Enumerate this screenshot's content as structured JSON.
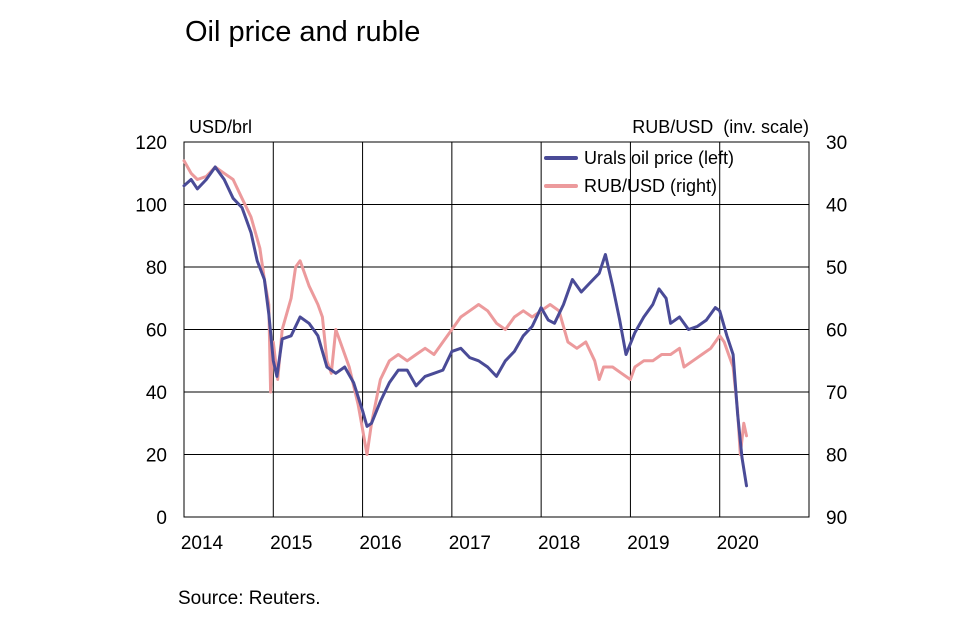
{
  "title": "Oil price and ruble",
  "source": "Source: Reuters.",
  "chart_data": {
    "type": "line",
    "x_ticks": [
      "2014",
      "2015",
      "2016",
      "2017",
      "2018",
      "2019",
      "2020"
    ],
    "xlim": [
      2014,
      2021
    ],
    "left_axis": {
      "unit": "USD/brl",
      "ticks": [
        "120",
        "100",
        "80",
        "60",
        "40",
        "20",
        "0"
      ],
      "range": [
        0,
        120
      ]
    },
    "right_axis": {
      "unit": "RUB/USD  (inv. scale)",
      "ticks": [
        "30",
        "40",
        "50",
        "60",
        "70",
        "80",
        "90"
      ],
      "range": [
        30,
        90
      ],
      "inverted": true
    },
    "grid": "vertical-and-horizontal",
    "legend": "top-right",
    "series": [
      {
        "name": "Urals oil price (left)",
        "axis": "left",
        "color": "#4a4b97",
        "points": [
          [
            2014.0,
            106
          ],
          [
            2014.08,
            108
          ],
          [
            2014.15,
            105
          ],
          [
            2014.25,
            108
          ],
          [
            2014.35,
            112
          ],
          [
            2014.45,
            108
          ],
          [
            2014.55,
            102
          ],
          [
            2014.65,
            99
          ],
          [
            2014.75,
            91
          ],
          [
            2014.82,
            82
          ],
          [
            2014.9,
            76
          ],
          [
            2014.95,
            65
          ],
          [
            2015.0,
            50
          ],
          [
            2015.04,
            45
          ],
          [
            2015.1,
            57
          ],
          [
            2015.2,
            58
          ],
          [
            2015.3,
            64
          ],
          [
            2015.4,
            62
          ],
          [
            2015.5,
            58
          ],
          [
            2015.6,
            48
          ],
          [
            2015.7,
            46
          ],
          [
            2015.8,
            48
          ],
          [
            2015.9,
            43
          ],
          [
            2016.0,
            34
          ],
          [
            2016.05,
            29
          ],
          [
            2016.1,
            30
          ],
          [
            2016.2,
            37
          ],
          [
            2016.3,
            43
          ],
          [
            2016.4,
            47
          ],
          [
            2016.5,
            47
          ],
          [
            2016.6,
            42
          ],
          [
            2016.7,
            45
          ],
          [
            2016.8,
            46
          ],
          [
            2016.9,
            47
          ],
          [
            2017.0,
            53
          ],
          [
            2017.1,
            54
          ],
          [
            2017.2,
            51
          ],
          [
            2017.3,
            50
          ],
          [
            2017.4,
            48
          ],
          [
            2017.5,
            45
          ],
          [
            2017.6,
            50
          ],
          [
            2017.7,
            53
          ],
          [
            2017.8,
            58
          ],
          [
            2017.9,
            61
          ],
          [
            2018.0,
            67
          ],
          [
            2018.08,
            63
          ],
          [
            2018.15,
            62
          ],
          [
            2018.25,
            68
          ],
          [
            2018.35,
            76
          ],
          [
            2018.45,
            72
          ],
          [
            2018.55,
            75
          ],
          [
            2018.65,
            78
          ],
          [
            2018.72,
            84
          ],
          [
            2018.8,
            74
          ],
          [
            2018.88,
            63
          ],
          [
            2018.95,
            52
          ],
          [
            2019.05,
            59
          ],
          [
            2019.15,
            64
          ],
          [
            2019.25,
            68
          ],
          [
            2019.32,
            73
          ],
          [
            2019.4,
            70
          ],
          [
            2019.45,
            62
          ],
          [
            2019.55,
            64
          ],
          [
            2019.65,
            60
          ],
          [
            2019.75,
            61
          ],
          [
            2019.85,
            63
          ],
          [
            2019.95,
            67
          ],
          [
            2020.0,
            66
          ],
          [
            2020.08,
            58
          ],
          [
            2020.15,
            52
          ],
          [
            2020.2,
            33
          ],
          [
            2020.25,
            19
          ],
          [
            2020.3,
            10
          ]
        ]
      },
      {
        "name": "RUB/USD (right)",
        "axis": "right",
        "color": "#ec9a9c",
        "points": [
          [
            2014.0,
            33
          ],
          [
            2014.08,
            35
          ],
          [
            2014.15,
            36
          ],
          [
            2014.25,
            35.5
          ],
          [
            2014.35,
            34
          ],
          [
            2014.45,
            35
          ],
          [
            2014.55,
            36
          ],
          [
            2014.65,
            39
          ],
          [
            2014.75,
            42
          ],
          [
            2014.85,
            47
          ],
          [
            2014.9,
            52
          ],
          [
            2014.95,
            56
          ],
          [
            2014.97,
            70
          ],
          [
            2015.0,
            62
          ],
          [
            2015.05,
            68
          ],
          [
            2015.1,
            60
          ],
          [
            2015.2,
            55
          ],
          [
            2015.25,
            50
          ],
          [
            2015.3,
            49
          ],
          [
            2015.4,
            53
          ],
          [
            2015.5,
            56
          ],
          [
            2015.55,
            58
          ],
          [
            2015.6,
            65
          ],
          [
            2015.65,
            67
          ],
          [
            2015.7,
            60
          ],
          [
            2015.75,
            62
          ],
          [
            2015.85,
            66
          ],
          [
            2015.95,
            72
          ],
          [
            2016.0,
            76
          ],
          [
            2016.05,
            80
          ],
          [
            2016.1,
            75
          ],
          [
            2016.2,
            68
          ],
          [
            2016.3,
            65
          ],
          [
            2016.4,
            64
          ],
          [
            2016.5,
            65
          ],
          [
            2016.6,
            64
          ],
          [
            2016.7,
            63
          ],
          [
            2016.8,
            64
          ],
          [
            2016.9,
            62
          ],
          [
            2017.0,
            60
          ],
          [
            2017.1,
            58
          ],
          [
            2017.2,
            57
          ],
          [
            2017.3,
            56
          ],
          [
            2017.4,
            57
          ],
          [
            2017.5,
            59
          ],
          [
            2017.6,
            60
          ],
          [
            2017.7,
            58
          ],
          [
            2017.8,
            57
          ],
          [
            2017.9,
            58
          ],
          [
            2018.0,
            57
          ],
          [
            2018.1,
            56
          ],
          [
            2018.2,
            57
          ],
          [
            2018.3,
            62
          ],
          [
            2018.4,
            63
          ],
          [
            2018.5,
            62
          ],
          [
            2018.6,
            65
          ],
          [
            2018.65,
            68
          ],
          [
            2018.7,
            66
          ],
          [
            2018.8,
            66
          ],
          [
            2018.9,
            67
          ],
          [
            2019.0,
            68
          ],
          [
            2019.05,
            66
          ],
          [
            2019.15,
            65
          ],
          [
            2019.25,
            65
          ],
          [
            2019.35,
            64
          ],
          [
            2019.45,
            64
          ],
          [
            2019.55,
            63
          ],
          [
            2019.6,
            66
          ],
          [
            2019.7,
            65
          ],
          [
            2019.8,
            64
          ],
          [
            2019.9,
            63
          ],
          [
            2020.0,
            61
          ],
          [
            2020.05,
            62
          ],
          [
            2020.1,
            64
          ],
          [
            2020.15,
            66
          ],
          [
            2020.2,
            73
          ],
          [
            2020.23,
            80
          ],
          [
            2020.27,
            75
          ],
          [
            2020.3,
            77
          ]
        ]
      }
    ]
  }
}
